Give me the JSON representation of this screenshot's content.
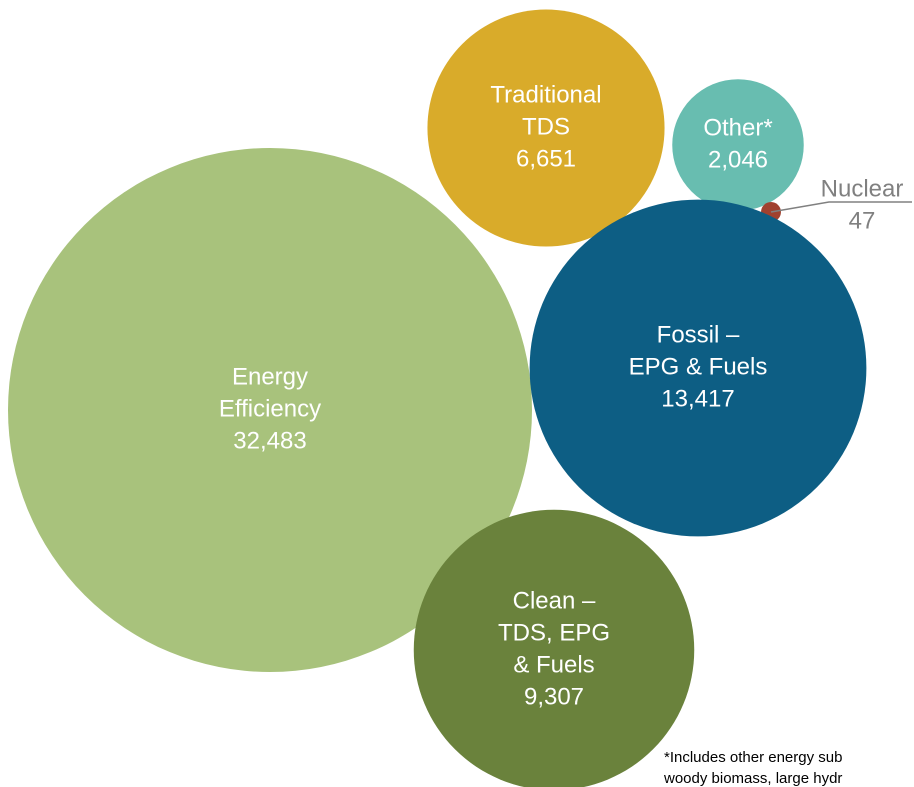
{
  "chart_data": {
    "type": "packed-bubble",
    "categories": [
      [
        "Energy",
        "Efficiency"
      ],
      [
        "Traditional",
        "TDS"
      ],
      [
        "Other*"
      ],
      [
        "Nuclear"
      ],
      [
        "Fossil –",
        "EPG & Fuels"
      ],
      [
        "Clean –",
        "TDS, EPG",
        "& Fuels"
      ]
    ],
    "values": [
      32483,
      6651,
      2046,
      47,
      13417,
      9307
    ],
    "value_labels": [
      "32,483",
      "6,651",
      "2,046",
      "47",
      "13,417",
      "9,307"
    ],
    "colors": [
      "#a8c27c",
      "#d9ab2a",
      "#68bdb0",
      "#a0412f",
      "#0d5e84",
      "#6a823c"
    ],
    "footnote": [
      "*Includes other energy sub",
      "woody biomass, large hydr"
    ]
  }
}
